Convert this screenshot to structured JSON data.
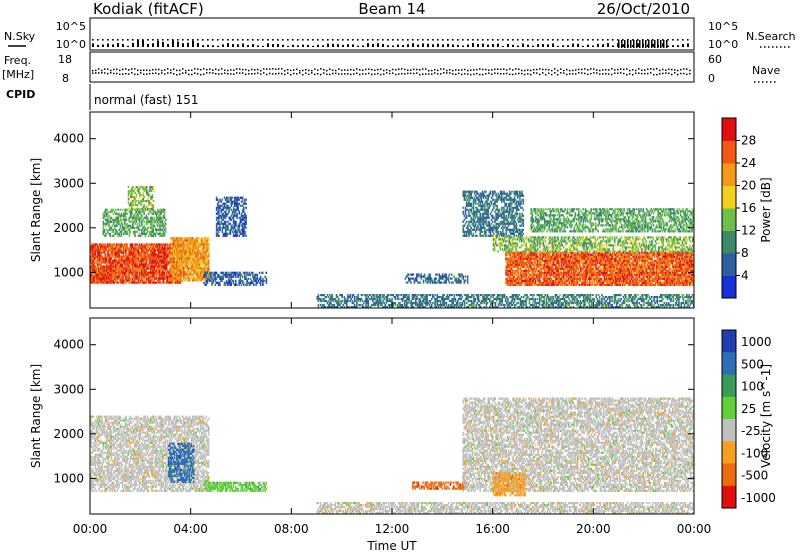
{
  "header": {
    "station": "Kodiak (fitACF)",
    "beam": "Beam 14",
    "date": "26/Oct/2010"
  },
  "top_strips": {
    "nsky_label": "N.Sky",
    "nsearch_label": "N.Search",
    "noise_ticks": [
      "10^5",
      "10^0"
    ],
    "freq_label_1": "Freq.",
    "freq_label_2": "[MHz]",
    "freq_ticks": [
      "18",
      "8"
    ],
    "nave_label": "Nave",
    "nave_ticks": [
      "60",
      "0"
    ],
    "cpid_label": "CPID",
    "cpid_value": "normal (fast) 151"
  },
  "x_axis": {
    "label": "Time UT",
    "ticks": [
      "00:00",
      "04:00",
      "08:00",
      "12:00",
      "16:00",
      "20:00",
      "00:00"
    ]
  },
  "chart_data": [
    {
      "type": "heatmap",
      "name": "power",
      "ylabel": "Slant Range [km]",
      "yticks": [
        1000,
        2000,
        3000,
        4000
      ],
      "ylim": [
        200,
        4600
      ],
      "xlim": [
        "00:00",
        "24:00"
      ],
      "colorbar": {
        "label": "Power [dB]",
        "ticks": [
          4,
          8,
          12,
          16,
          20,
          24,
          28
        ],
        "range": [
          0,
          32
        ],
        "colors": [
          "#1a2fd6",
          "#2f5fa0",
          "#3c8a6a",
          "#6fbf4a",
          "#f0d020",
          "#f39a1a",
          "#f05a14",
          "#e01010"
        ]
      },
      "regions": [
        {
          "t": [
            0.0,
            3.6
          ],
          "range_km": [
            750,
            1650
          ],
          "level": 27
        },
        {
          "t": [
            3.2,
            4.7
          ],
          "range_km": [
            800,
            1750
          ],
          "level": 22
        },
        {
          "t": [
            0.5,
            3.0
          ],
          "range_km": [
            1800,
            2400
          ],
          "level": 12
        },
        {
          "t": [
            1.5,
            2.5
          ],
          "range_km": [
            2400,
            2900
          ],
          "level": 14
        },
        {
          "t": [
            5.0,
            6.2
          ],
          "range_km": [
            1800,
            2700
          ],
          "level": 6
        },
        {
          "t": [
            4.5,
            7.0
          ],
          "range_km": [
            700,
            1000
          ],
          "level": 6
        },
        {
          "t": [
            9.0,
            15.0
          ],
          "range_km": [
            200,
            500
          ],
          "level": 8
        },
        {
          "t": [
            12.5,
            15.0
          ],
          "range_km": [
            750,
            950
          ],
          "level": 7
        },
        {
          "t": [
            14.8,
            17.2
          ],
          "range_km": [
            1800,
            2800
          ],
          "level": 8
        },
        {
          "t": [
            16.5,
            24.0
          ],
          "range_km": [
            700,
            1450
          ],
          "level": 26
        },
        {
          "t": [
            16.0,
            24.0
          ],
          "range_km": [
            1450,
            1800
          ],
          "level": 14
        },
        {
          "t": [
            17.5,
            24.0
          ],
          "range_km": [
            1900,
            2400
          ],
          "level": 12
        },
        {
          "t": [
            15.0,
            24.0
          ],
          "range_km": [
            200,
            500
          ],
          "level": 9
        }
      ]
    },
    {
      "type": "heatmap",
      "name": "velocity",
      "ylabel": "Slant Range [km]",
      "yticks": [
        1000,
        2000,
        3000,
        4000
      ],
      "ylim": [
        200,
        4600
      ],
      "xlim": [
        "00:00",
        "24:00"
      ],
      "colorbar": {
        "label": "Velocity [m s^-1]",
        "ticks": [
          "1000",
          "500",
          "100",
          "25",
          "-25",
          "-100",
          "-500",
          "-1000"
        ],
        "colors": [
          "#1f3fb0",
          "#2f6fb8",
          "#3a9a5a",
          "#5fcf3a",
          "#c0c0c0",
          "#f5a020",
          "#f06a10",
          "#e01010"
        ]
      },
      "regions": [
        {
          "t": [
            0.0,
            4.7
          ],
          "range_km": [
            700,
            2400
          ],
          "class": "-25..25"
        },
        {
          "t": [
            3.1,
            4.1
          ],
          "range_km": [
            900,
            1800
          ],
          "class": "100..500"
        },
        {
          "t": [
            4.5,
            7.0
          ],
          "range_km": [
            700,
            900
          ],
          "class": "25..100"
        },
        {
          "t": [
            12.8,
            15.0
          ],
          "range_km": [
            750,
            900
          ],
          "class": "-100..-500"
        },
        {
          "t": [
            14.8,
            24.0
          ],
          "range_km": [
            700,
            2800
          ],
          "class": "-25..25"
        },
        {
          "t": [
            16.0,
            17.3
          ],
          "range_km": [
            600,
            1100
          ],
          "class": "-25..-100"
        },
        {
          "t": [
            9.0,
            24.0
          ],
          "range_km": [
            200,
            450
          ],
          "class": "-25..25"
        }
      ]
    }
  ]
}
